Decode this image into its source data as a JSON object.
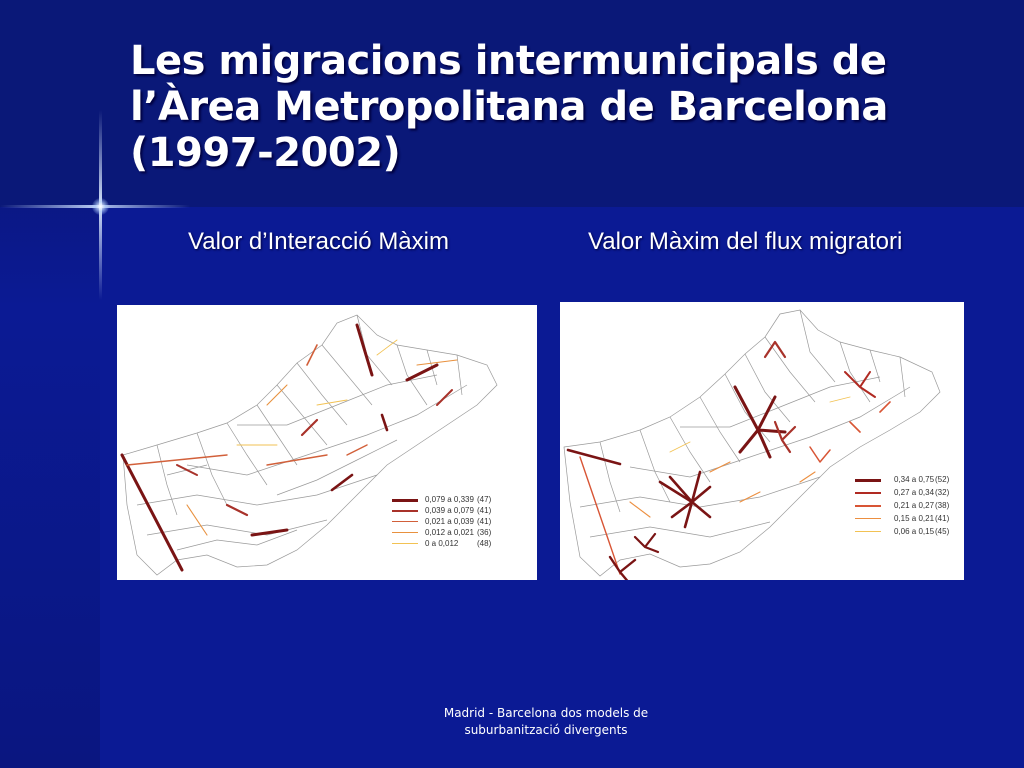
{
  "slide": {
    "title_lines": [
      "Les migracions intermunicipals de",
      "l’Àrea Metropolitana de Barcelona",
      "(1997-2002)"
    ],
    "footer_lines": [
      "Madrid - Barcelona dos models de",
      "suburbanització divergents"
    ]
  },
  "maps": {
    "left": {
      "subtitle": "Valor d’Interacció Màxim",
      "legend": [
        {
          "range": "0,079 a 0,339",
          "count": "(47)",
          "color": "#7a1414"
        },
        {
          "range": "0,039 a 0,079",
          "count": "(41)",
          "color": "#a8322a"
        },
        {
          "range": "0,021 a 0,039",
          "count": "(41)",
          "color": "#d2603a"
        },
        {
          "range": "0,012 a 0,021",
          "count": "(36)",
          "color": "#e8913e"
        },
        {
          "range": "0        a 0,012",
          "count": "(48)",
          "color": "#f2c253"
        }
      ]
    },
    "right": {
      "subtitle": "Valor Màxim del flux migratori",
      "legend": [
        {
          "range": "0,34 a 0,75",
          "count": "(52)",
          "color": "#7a1414"
        },
        {
          "range": "0,27 a 0,34",
          "count": "(32)",
          "color": "#b02a22"
        },
        {
          "range": "0,21 a 0,27",
          "count": "(38)",
          "color": "#d85535"
        },
        {
          "range": "0,15 a 0,21",
          "count": "(41)",
          "color": "#ec8f40"
        },
        {
          "range": "0,06 a 0,15",
          "count": "(45)",
          "color": "#f2c253"
        }
      ]
    }
  }
}
